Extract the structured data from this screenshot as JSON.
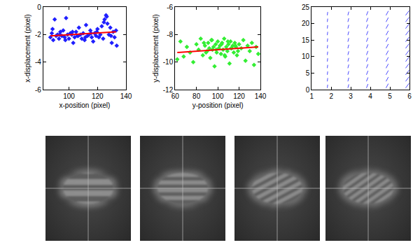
{
  "chart_data": [
    {
      "type": "scatter",
      "x_label": "x-position (pixel)",
      "y_label": "x-displacement (pixel)",
      "xlim": [
        82,
        140
      ],
      "xticks": [
        100,
        120,
        140
      ],
      "ylim": [
        -6,
        0
      ],
      "yticks": [
        -6,
        -4,
        -2,
        0
      ],
      "grid": false,
      "series": [
        {
          "type": "scatter",
          "color": "#1f1fff",
          "marker": "diamond",
          "x": [
            87,
            88,
            89,
            90,
            91,
            92,
            93,
            94,
            95,
            96,
            97,
            98,
            99,
            100,
            101,
            102,
            103,
            104,
            105,
            106,
            107,
            108,
            109,
            110,
            111,
            112,
            113,
            114,
            115,
            116,
            117,
            118,
            119,
            120,
            121,
            122,
            123,
            124,
            125,
            126,
            127,
            128,
            129,
            130,
            131,
            132,
            133,
            88.5,
            93.5,
            97.5,
            102.5,
            106.5,
            111.5,
            115.5,
            119.5,
            124.5,
            126.5,
            129.5,
            133.5
          ],
          "y": [
            -2.2,
            -1.9,
            -2.4,
            -0.9,
            -2.1,
            -2.0,
            -2.3,
            -1.8,
            -2.1,
            -1.7,
            -2.2,
            -0.8,
            -2.0,
            -2.3,
            -1.9,
            -2.0,
            -2.6,
            -2.2,
            -1.8,
            -2.1,
            -1.5,
            -2.0,
            -2.3,
            -1.9,
            -2.4,
            -1.3,
            -2.1,
            -2.0,
            -1.7,
            -2.2,
            -2.5,
            -1.9,
            -2.1,
            -1.6,
            -2.2,
            -2.0,
            -1.4,
            -2.3,
            -0.9,
            -0.6,
            -1.2,
            -2.0,
            -1.5,
            -2.6,
            -1.8,
            -2.2,
            -1.7,
            -1.6,
            -2.0,
            -2.4,
            -1.8,
            -2.1,
            -2.2,
            -1.9,
            -1.8,
            -1.1,
            -0.7,
            -2.1,
            -2.8
          ]
        },
        {
          "type": "line",
          "color": "#ff0000",
          "x": [
            87,
            133
          ],
          "y": [
            -2.1,
            -1.8
          ]
        }
      ]
    },
    {
      "type": "scatter",
      "x_label": "y-position (pixel)",
      "y_label": "y-displacement (pixel)",
      "xlim": [
        60,
        140
      ],
      "xticks": [
        60,
        80,
        100,
        120,
        140
      ],
      "ylim": [
        -12,
        -6
      ],
      "yticks": [
        -12,
        -10,
        -8,
        -6
      ],
      "grid": false,
      "series": [
        {
          "type": "scatter",
          "color": "#33ee33",
          "marker": "diamond",
          "x": [
            62,
            65,
            68,
            71,
            74,
            77,
            80,
            82,
            84,
            86,
            88,
            90,
            91,
            92,
            93,
            94,
            95,
            96,
            97,
            98,
            99,
            100,
            101,
            102,
            103,
            104,
            105,
            106,
            107,
            108,
            109,
            110,
            111,
            112,
            113,
            114,
            115,
            116,
            117,
            118,
            120,
            122,
            124,
            126,
            128,
            130,
            132,
            134,
            136,
            138,
            87,
            89,
            94.5,
            98.5,
            103.5,
            106.5,
            109.5,
            112.5,
            116.5,
            119
          ],
          "y": [
            -9.8,
            -8.5,
            -9.6,
            -8.9,
            -9.3,
            -10.0,
            -8.7,
            -9.1,
            -8.3,
            -9.5,
            -8.8,
            -9.2,
            -8.6,
            -9.0,
            -9.7,
            -8.4,
            -9.1,
            -8.9,
            -10.3,
            -8.7,
            -9.3,
            -8.5,
            -9.0,
            -8.8,
            -9.4,
            -8.6,
            -9.1,
            -8.3,
            -9.6,
            -8.9,
            -9.2,
            -8.7,
            -10.1,
            -8.5,
            -9.0,
            -8.8,
            -9.3,
            -8.6,
            -8.9,
            -9.5,
            -8.7,
            -9.0,
            -8.4,
            -9.9,
            -8.8,
            -9.2,
            -8.6,
            -10.2,
            -8.9,
            -9.4,
            -8.6,
            -9.3,
            -8.4,
            -9.1,
            -8.7,
            -9.5,
            -8.5,
            -9.0,
            -8.8,
            -9.2
          ]
        },
        {
          "type": "line",
          "color": "#ff0000",
          "x": [
            62,
            138
          ],
          "y": [
            -9.3,
            -8.9
          ]
        }
      ]
    },
    {
      "type": "quiver",
      "xlim": [
        1,
        6
      ],
      "xticks": [
        1,
        2,
        3,
        4,
        5,
        6
      ],
      "ylim": [
        0,
        25
      ],
      "yticks": [
        0,
        5,
        10,
        15,
        20,
        25
      ],
      "grid": false,
      "color": "#4a4aff",
      "y": [
        0.5,
        2.5,
        4.5,
        6.5,
        8.5,
        10.5,
        12.5,
        14.5,
        16.5,
        18.5,
        20.5,
        22.5
      ],
      "series": [
        {
          "x": 1.8,
          "u": 0.02,
          "v": 1.0
        },
        {
          "x": 2.85,
          "u": 0.05,
          "v": 1.1
        },
        {
          "x": 3.8,
          "u": 0.08,
          "v": 1.2
        },
        {
          "x": 4.8,
          "u": 0.12,
          "v": 1.3
        },
        {
          "x": 5.8,
          "u": 0.18,
          "v": 1.4
        }
      ]
    }
  ]
}
